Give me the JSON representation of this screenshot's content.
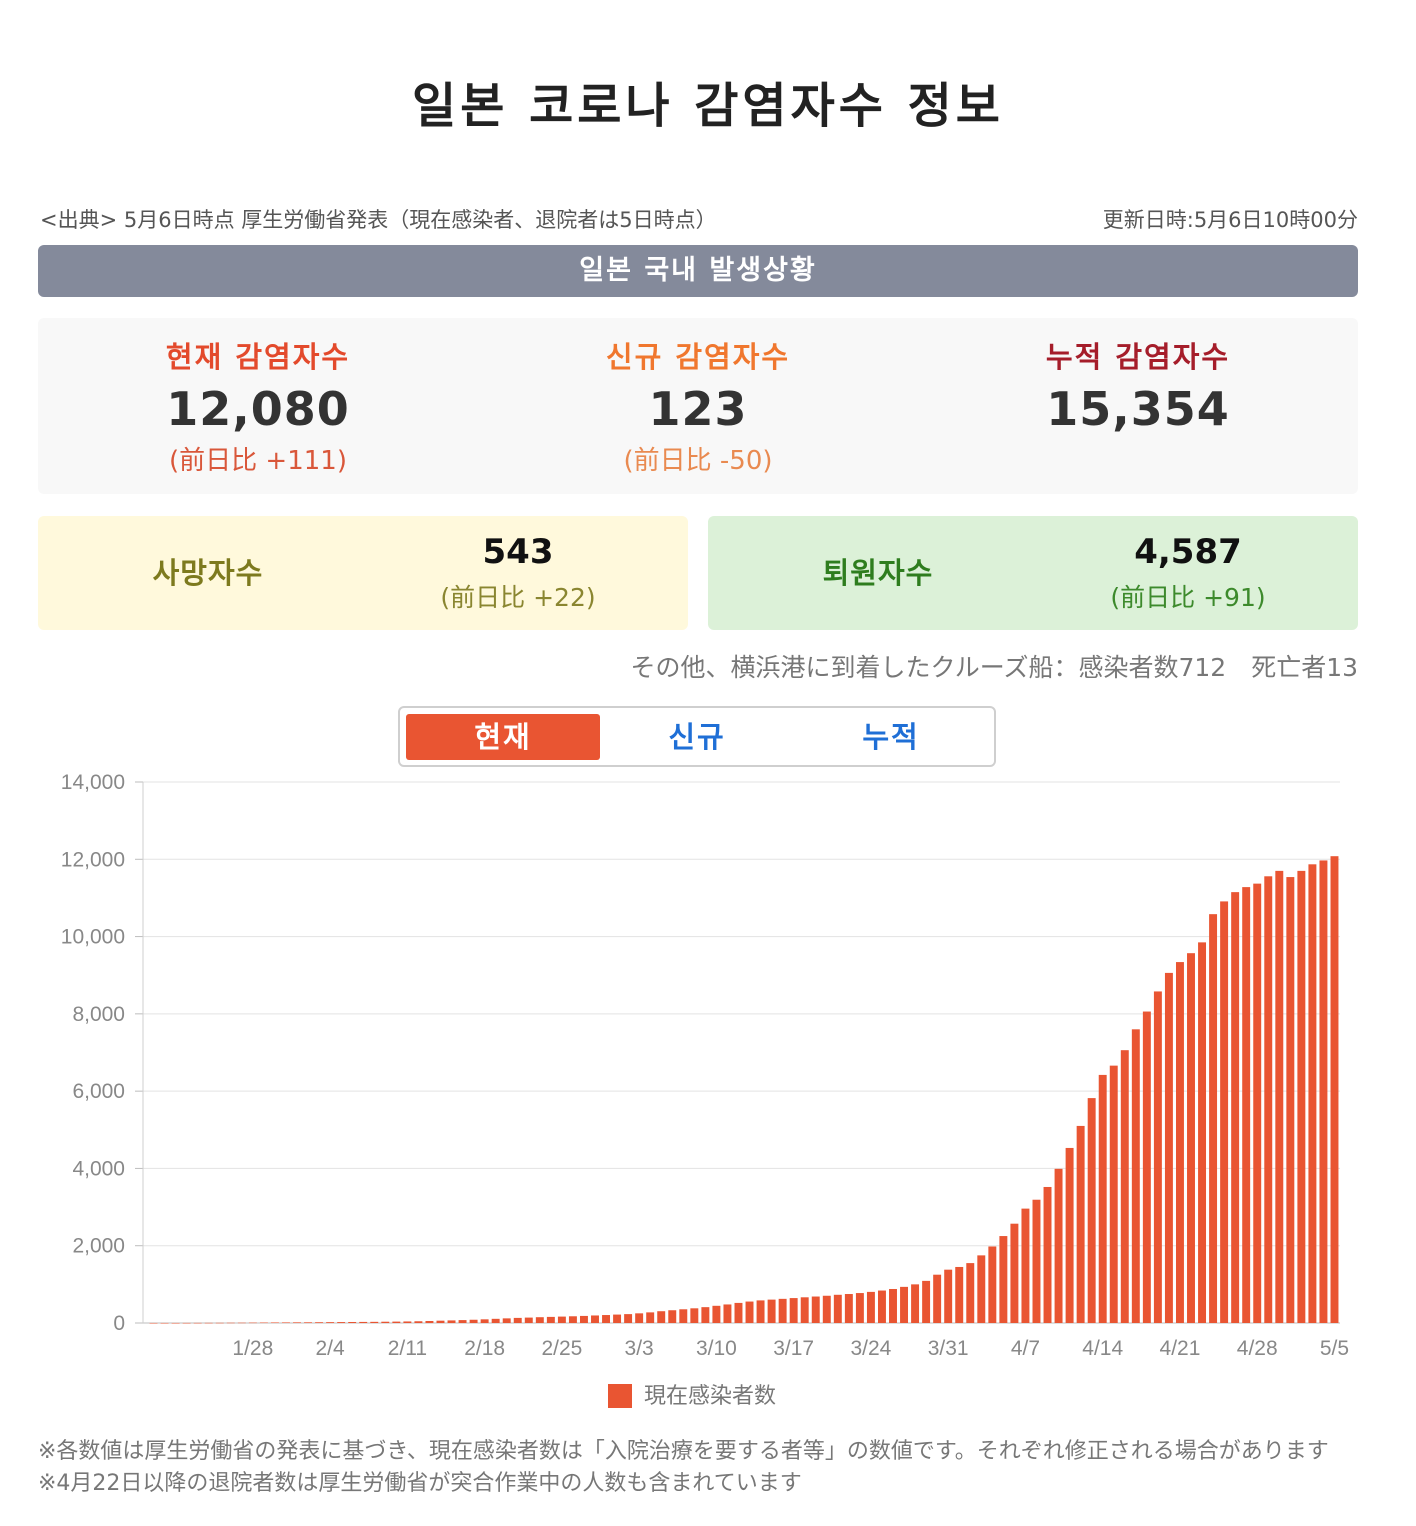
{
  "page": {
    "title": "일본 코로나 감염자수 정보",
    "source": "<出典> 5月6日時点 厚生労働省発表（現在感染者、退院者は5日時点）",
    "updated": "更新日時:5月6日10時00分",
    "banner": "일본 국내 발생상황"
  },
  "stats": {
    "current": {
      "label": "현재 감염자수",
      "value": "12,080",
      "diff": "(前日比 +111)"
    },
    "new": {
      "label": "신규 감염자수",
      "value": "123",
      "diff": "(前日比 -50)"
    },
    "cumulative": {
      "label": "누적 감염자수",
      "value": "15,354"
    }
  },
  "deaths": {
    "label": "사망자수",
    "value": "543",
    "diff": "(前日比 +22)"
  },
  "discharged": {
    "label": "퇴원자수",
    "value": "4,587",
    "diff": "(前日比 +91)"
  },
  "cruise_note": "その他、横浜港に到着したクルーズ船：感染者数712　死亡者13",
  "tabs": {
    "current": "현재",
    "new": "신규",
    "cumulative": "누적"
  },
  "footer": "※各数値は厚生労働省の発表に基づき、現在感染者数は「入院治療を要する者等」の数値です。それぞれ修正される場合があります　※4月22日以降の退院者数は厚生労働省が突合作業中の人数も含まれています",
  "colors": {
    "accent": "#e95532",
    "banner": "#848a9b",
    "tab_text": "#1f6fd6",
    "current_label": "#e34a2c",
    "new_label": "#f0772e",
    "cumulative_label": "#a51d2a",
    "deaths_bg": "#fff9dc",
    "deaths_text": "#7d7a1e",
    "discharged_bg": "#dcf1d8",
    "discharged_text": "#2e7d1e"
  },
  "chart_data": {
    "type": "bar",
    "title": "",
    "xlabel": "",
    "ylabel": "",
    "legend": "現在感染者数",
    "legend_position": "bottom",
    "ylim": [
      0,
      14000
    ],
    "yticks": [
      "0",
      "2,000",
      "4,000",
      "6,000",
      "8,000",
      "10,000",
      "12,000",
      "14,000"
    ],
    "ytick_values": [
      0,
      2000,
      4000,
      6000,
      8000,
      10000,
      12000,
      14000
    ],
    "xtick_labels": [
      "1/28",
      "2/4",
      "2/11",
      "2/18",
      "2/25",
      "3/3",
      "3/10",
      "3/17",
      "3/24",
      "3/31",
      "4/7",
      "4/14",
      "4/21",
      "4/28",
      "5/5"
    ],
    "first_date": "1/20",
    "last_date": "5/5",
    "values": [
      1,
      1,
      1,
      2,
      3,
      4,
      5,
      7,
      8,
      10,
      12,
      14,
      15,
      17,
      18,
      20,
      22,
      24,
      26,
      28,
      30,
      33,
      36,
      40,
      45,
      52,
      60,
      67,
      75,
      84,
      95,
      108,
      120,
      132,
      140,
      150,
      158,
      166,
      174,
      183,
      195,
      206,
      218,
      230,
      250,
      275,
      305,
      330,
      355,
      380,
      410,
      445,
      480,
      520,
      555,
      585,
      605,
      625,
      645,
      665,
      685,
      705,
      730,
      750,
      775,
      805,
      840,
      880,
      935,
      1000,
      1090,
      1250,
      1380,
      1450,
      1550,
      1750,
      1980,
      2250,
      2570,
      2960,
      3190,
      3520,
      3990,
      4530,
      5100,
      5820,
      6420,
      6660,
      7060,
      7600,
      8060,
      8580,
      9060,
      9340,
      9570,
      9850,
      10580,
      10910,
      11150,
      11280,
      11370,
      11560,
      11700,
      11540,
      11700,
      11870,
      11970,
      12080
    ]
  }
}
